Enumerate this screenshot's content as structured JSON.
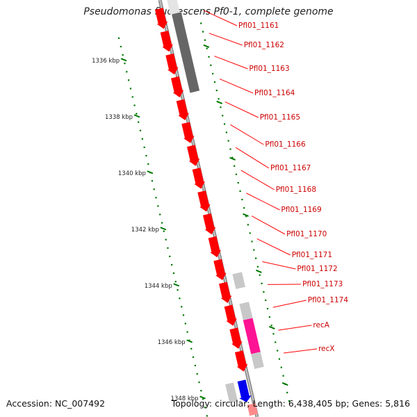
{
  "title": "Pseudomonas fluorescens Pf0-1, complete genome",
  "footer": {
    "accession": "Accession: NC_007492",
    "topology": "Topology: circular; Length: 6,438,405 bp; Genes: 5,816"
  },
  "ruler": {
    "unit": "kbp",
    "ticks": [
      "1336 kbp",
      "1338 kbp",
      "1340 kbp",
      "1342 kbp",
      "1344 kbp",
      "1346 kbp",
      "1348 kbp"
    ]
  },
  "genes": [
    {
      "label": "Pfl01_1161",
      "strand": "+",
      "color": "#ff0000"
    },
    {
      "label": "Pfl01_1162",
      "strand": "+",
      "color": "#ff0000"
    },
    {
      "label": "Pfl01_1163",
      "strand": "+",
      "color": "#ff0000"
    },
    {
      "label": "Pfl01_1164",
      "strand": "+",
      "color": "#ff0000"
    },
    {
      "label": "Pfl01_1165",
      "strand": "+",
      "color": "#ff0000"
    },
    {
      "label": "Pfl01_1166",
      "strand": "+",
      "color": "#ff0000"
    },
    {
      "label": "Pfl01_1167",
      "strand": "+",
      "color": "#ff0000"
    },
    {
      "label": "Pfl01_1168",
      "strand": "+",
      "color": "#ff0000"
    },
    {
      "label": "Pfl01_1169",
      "strand": "+",
      "color": "#ff0000"
    },
    {
      "label": "Pfl01_1170",
      "strand": "+",
      "color": "#ff0000"
    },
    {
      "label": "Pfl01_1171",
      "strand": "+",
      "color": "#ff0000"
    },
    {
      "label": "Pfl01_1172",
      "strand": "+",
      "color": "#ff0000"
    },
    {
      "label": "Pfl01_1173",
      "strand": "+",
      "color": "#ff0000"
    },
    {
      "label": "Pfl01_1174",
      "strand": "+",
      "color": "#ff0000"
    },
    {
      "label": "recA",
      "strand": "+",
      "color": "#ff0000"
    },
    {
      "label": "recX",
      "strand": "+",
      "color": "#ff0000"
    }
  ],
  "colors": {
    "gene": "#ff0000",
    "label": "#cc0000",
    "pointer": "#ff0000",
    "backbone": "#8c8c8c",
    "ruler": "#007700",
    "feature_dark": "#666666",
    "feature_light": "#c8c8c8",
    "feature_magenta": "#ff1493",
    "feature_blue": "#0000ee"
  }
}
